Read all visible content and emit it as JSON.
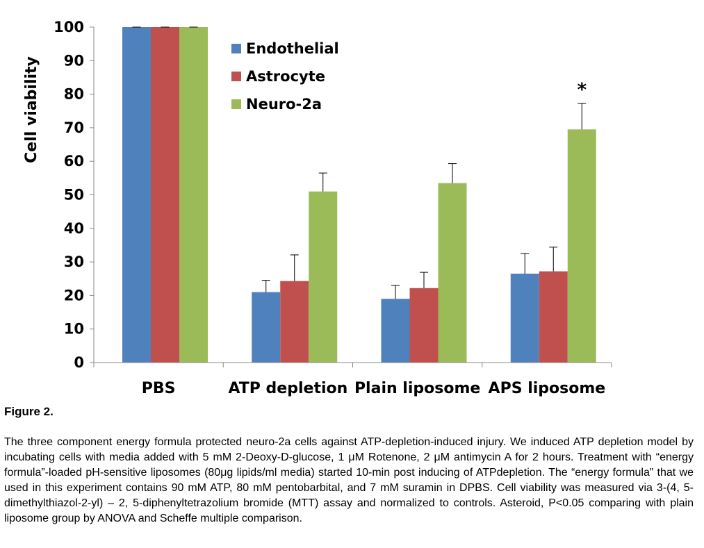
{
  "chart_data": {
    "type": "bar",
    "title": "",
    "xlabel": "",
    "ylabel": "Cell viability",
    "ylim": [
      0,
      100
    ],
    "yticks": [
      0,
      10,
      20,
      30,
      40,
      50,
      60,
      70,
      80,
      90,
      100
    ],
    "grid": false,
    "legend_position": "top-center",
    "categories": [
      "PBS",
      "ATP depletion",
      "Plain liposome",
      "APS liposome"
    ],
    "series": [
      {
        "name": "Endothelial",
        "color": "#4F81BD",
        "values": [
          100,
          21,
          19,
          26.5
        ],
        "errors": [
          0,
          3.5,
          4,
          6
        ]
      },
      {
        "name": "Astrocyte",
        "color": "#C0504D",
        "values": [
          100,
          24.3,
          22.2,
          27.2
        ],
        "errors": [
          0,
          7.8,
          4.7,
          7.2
        ]
      },
      {
        "name": "Neuro-2a",
        "color": "#9BBB59",
        "values": [
          100,
          51,
          53.5,
          69.5
        ],
        "errors": [
          0,
          5.5,
          5.8,
          7.8
        ]
      }
    ],
    "annotations": [
      {
        "text": "*",
        "category": "APS liposome",
        "series": "Neuro-2a"
      }
    ]
  },
  "figure": {
    "title": "Figure 2.",
    "caption": "The three component energy formula protected neuro-2a cells against ATP-depletion-induced injury. We induced ATP depletion model by incubating cells with media added with 5 mM 2-Deoxy-D-glucose, 1 μM Rotenone, 2 μM antimycin A for 2 hours. Treatment with “energy formula”-loaded pH-sensitive liposomes (80μg lipids/ml media) started 10-min post inducing of ATPdepletion. The “energy formula” that we used in this experiment contains 90 mM ATP, 80 mM pentobarbital, and 7 mM suramin in DPBS. Cell viability was measured via 3-(4, 5-dimethylthiazol-2-yl) – 2, 5-diphenyltetrazolium bromide (MTT) assay and normalized to controls. Asteroid, P<0.05 comparing with plain liposome group by ANOVA and Scheffe multiple comparison."
  }
}
